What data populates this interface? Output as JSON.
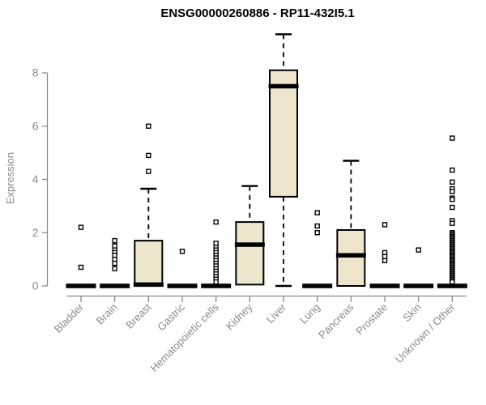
{
  "chart_data": {
    "type": "boxplot",
    "title": "ENSG00000260886 - RP11-432I5.1",
    "ylabel": "Expression",
    "xlabel": "",
    "yticks": [
      0,
      2,
      4,
      6,
      8
    ],
    "ylim": [
      0,
      9.6
    ],
    "grid": "off",
    "legend": "none",
    "categories": [
      "Bladder",
      "Brain",
      "Breast",
      "Gastric",
      "Hematopoietic cells",
      "Kidney",
      "Liver",
      "Lung",
      "Pancreas",
      "Prostate",
      "Skin",
      "Unknown / Other"
    ],
    "series": [
      {
        "category": "Bladder",
        "whisker_low": 0,
        "q1": 0,
        "median": 0,
        "q3": 0.05,
        "whisker_high": 0.05,
        "outliers": [
          2.2,
          0.7
        ]
      },
      {
        "category": "Brain",
        "whisker_low": 0,
        "q1": 0,
        "median": 0,
        "q3": 0.05,
        "whisker_high": 0.05,
        "outliers": [
          1.7,
          1.5,
          1.35,
          1.25,
          1.15,
          1.0,
          0.85,
          0.65
        ]
      },
      {
        "category": "Breast",
        "whisker_low": 0,
        "q1": 0,
        "median": 0.05,
        "q3": 1.7,
        "whisker_high": 3.65,
        "outliers": [
          6.0,
          4.9,
          4.3
        ]
      },
      {
        "category": "Gastric",
        "whisker_low": 0,
        "q1": 0,
        "median": 0,
        "q3": 0.05,
        "whisker_high": 0.05,
        "outliers": [
          1.3
        ]
      },
      {
        "category": "Hematopoietic cells",
        "whisker_low": 0,
        "q1": 0,
        "median": 0,
        "q3": 0.05,
        "whisker_high": 0.05,
        "outliers": [
          2.4,
          1.6,
          1.45,
          1.35,
          1.25,
          1.15,
          1.05,
          0.95,
          0.85,
          0.75,
          0.65,
          0.55,
          0.45,
          0.35,
          0.25,
          0.15
        ]
      },
      {
        "category": "Kidney",
        "whisker_low": 0.05,
        "q1": 0.05,
        "median": 1.55,
        "q3": 2.4,
        "whisker_high": 3.75,
        "outliers": []
      },
      {
        "category": "Liver",
        "whisker_low": 0,
        "q1": 3.35,
        "median": 7.5,
        "q3": 8.1,
        "whisker_high": 9.45,
        "outliers": []
      },
      {
        "category": "Lung",
        "whisker_low": 0,
        "q1": 0,
        "median": 0,
        "q3": 0.05,
        "whisker_high": 0.05,
        "outliers": [
          2.75,
          2.25,
          2.0
        ]
      },
      {
        "category": "Pancreas",
        "whisker_low": 0,
        "q1": 0,
        "median": 1.15,
        "q3": 2.1,
        "whisker_high": 4.7,
        "outliers": []
      },
      {
        "category": "Prostate",
        "whisker_low": 0,
        "q1": 0,
        "median": 0,
        "q3": 0.05,
        "whisker_high": 0.05,
        "outliers": [
          2.3,
          1.25,
          1.1,
          0.95
        ]
      },
      {
        "category": "Skin",
        "whisker_low": 0,
        "q1": 0,
        "median": 0,
        "q3": 0.05,
        "whisker_high": 0.05,
        "outliers": [
          1.35
        ]
      },
      {
        "category": "Unknown / Other",
        "whisker_low": 0,
        "q1": 0,
        "median": 0,
        "q3": 0.05,
        "whisker_high": 0.05,
        "outliers": [
          5.55,
          4.35,
          3.9,
          3.65,
          3.55,
          3.3,
          3.25,
          2.95,
          2.45,
          2.35,
          2.0,
          1.95,
          1.9,
          1.85,
          1.8,
          1.75,
          1.7,
          1.65,
          1.6,
          1.55,
          1.5,
          1.45,
          1.4,
          1.35,
          1.3,
          1.25,
          1.2,
          1.15,
          1.1,
          1.05,
          1.0,
          0.95,
          0.9,
          0.85,
          0.8,
          0.75,
          0.7,
          0.65,
          0.6,
          0.55,
          0.5,
          0.45,
          0.4,
          0.35,
          0.3,
          0.25,
          0.2,
          0.15
        ]
      }
    ],
    "colors": {
      "box_fill": "#ede6cc",
      "box_border": "#000000",
      "median": "#000000",
      "outlier_fill": "#ffffff",
      "axis": "#8a8a8a",
      "title": "#000000",
      "background": "#ffffff"
    }
  }
}
